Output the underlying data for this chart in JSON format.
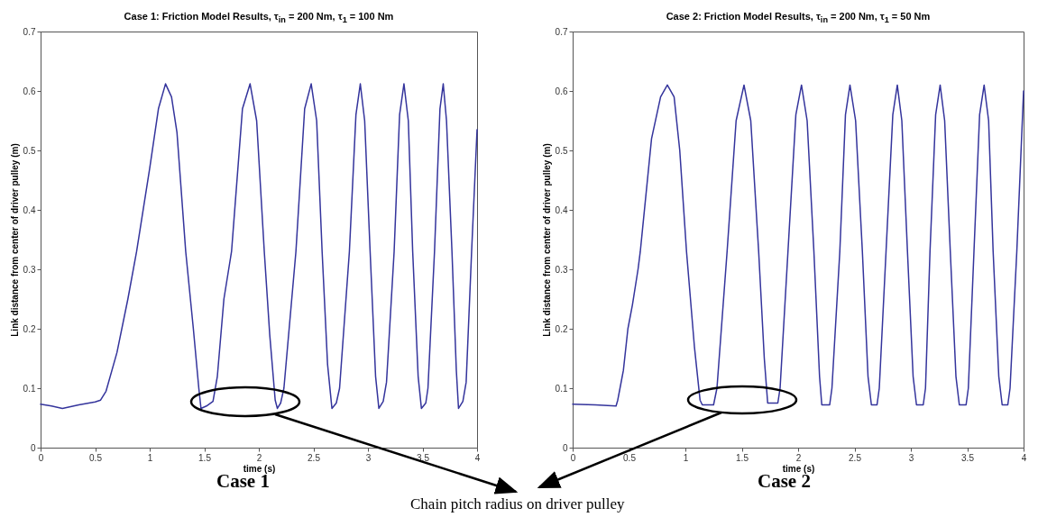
{
  "chart_data": [
    {
      "type": "line",
      "title": "Case 1: Friction Model Results, τ$_{in}$ = 200 Nm, τ$_{1}$ = 100 Nm",
      "xlabel": "time (s)",
      "ylabel": "Link distance from center of driver pulley (m)",
      "annotations": [
        "Case 1",
        "Chain pitch radius on driver pulley"
      ],
      "xlim": [
        0,
        4
      ],
      "ylim": [
        0,
        0.7
      ],
      "xticks": [
        0,
        0.5,
        1,
        1.5,
        2,
        2.5,
        3,
        3.5,
        4
      ],
      "yticks": [
        0,
        0.1,
        0.2,
        0.3,
        0.4,
        0.5,
        0.6,
        0.7
      ],
      "color": "#34349c",
      "x": [
        0,
        0.1,
        0.2,
        0.35,
        0.5,
        0.55,
        0.6,
        0.7,
        0.8,
        0.88,
        1.0,
        1.08,
        1.145,
        1.2,
        1.25,
        1.33,
        1.4,
        1.45,
        1.47,
        1.52,
        1.58,
        1.62,
        1.68,
        1.75,
        1.85,
        1.92,
        1.98,
        2.05,
        2.1,
        2.15,
        2.17,
        2.2,
        2.23,
        2.34,
        2.42,
        2.48,
        2.53,
        2.58,
        2.63,
        2.67,
        2.71,
        2.74,
        2.83,
        2.89,
        2.93,
        2.97,
        3.02,
        3.07,
        3.1,
        3.14,
        3.17,
        3.24,
        3.29,
        3.33,
        3.37,
        3.41,
        3.46,
        3.49,
        3.53,
        3.55,
        3.61,
        3.66,
        3.69,
        3.72,
        3.77,
        3.81,
        3.83,
        3.87,
        3.9,
        3.95,
        4.0
      ],
      "values": [
        0.073,
        0.07,
        0.066,
        0.072,
        0.077,
        0.08,
        0.095,
        0.16,
        0.25,
        0.33,
        0.47,
        0.57,
        0.612,
        0.59,
        0.53,
        0.33,
        0.2,
        0.1,
        0.066,
        0.07,
        0.078,
        0.12,
        0.25,
        0.33,
        0.57,
        0.612,
        0.55,
        0.33,
        0.19,
        0.08,
        0.066,
        0.075,
        0.1,
        0.33,
        0.57,
        0.612,
        0.55,
        0.33,
        0.14,
        0.066,
        0.075,
        0.1,
        0.33,
        0.56,
        0.612,
        0.55,
        0.33,
        0.12,
        0.066,
        0.078,
        0.11,
        0.33,
        0.56,
        0.612,
        0.55,
        0.33,
        0.12,
        0.066,
        0.075,
        0.1,
        0.33,
        0.57,
        0.612,
        0.55,
        0.33,
        0.13,
        0.066,
        0.078,
        0.11,
        0.33,
        0.535
      ]
    },
    {
      "type": "line",
      "title": "Case 2: Friction Model Results, τ$_{in}$ = 200 Nm, τ$_{1}$ = 50 Nm",
      "xlabel": "time (s)",
      "ylabel": "Link distance from center of driver pulley (m)",
      "annotations": [
        "Case 2"
      ],
      "xlim": [
        0,
        4
      ],
      "ylim": [
        0,
        0.7
      ],
      "xticks": [
        0,
        0.5,
        1,
        1.5,
        2,
        2.5,
        3,
        3.5,
        4
      ],
      "yticks": [
        0,
        0.1,
        0.2,
        0.3,
        0.4,
        0.5,
        0.6,
        0.7
      ],
      "color": "#34349c",
      "x": [
        0,
        0.2,
        0.385,
        0.4,
        0.42,
        0.45,
        0.49,
        0.53,
        0.58,
        0.6,
        0.7,
        0.78,
        0.84,
        0.9,
        0.95,
        1.01,
        1.08,
        1.13,
        1.15,
        1.25,
        1.28,
        1.37,
        1.45,
        1.52,
        1.58,
        1.65,
        1.7,
        1.73,
        1.82,
        1.84,
        1.91,
        1.98,
        2.03,
        2.08,
        2.14,
        2.19,
        2.21,
        2.28,
        2.3,
        2.37,
        2.42,
        2.46,
        2.51,
        2.57,
        2.62,
        2.65,
        2.7,
        2.72,
        2.78,
        2.84,
        2.88,
        2.92,
        2.97,
        3.02,
        3.05,
        3.11,
        3.13,
        3.17,
        3.22,
        3.26,
        3.3,
        3.35,
        3.4,
        3.43,
        3.49,
        3.51,
        3.56,
        3.61,
        3.65,
        3.69,
        3.73,
        3.78,
        3.81,
        3.86,
        3.88,
        3.94,
        4.0
      ],
      "values": [
        0.073,
        0.072,
        0.07,
        0.08,
        0.1,
        0.13,
        0.2,
        0.24,
        0.3,
        0.33,
        0.52,
        0.59,
        0.61,
        0.59,
        0.5,
        0.33,
        0.17,
        0.08,
        0.072,
        0.072,
        0.1,
        0.33,
        0.55,
        0.61,
        0.55,
        0.33,
        0.15,
        0.075,
        0.075,
        0.1,
        0.33,
        0.56,
        0.61,
        0.55,
        0.33,
        0.12,
        0.072,
        0.072,
        0.1,
        0.33,
        0.56,
        0.61,
        0.55,
        0.33,
        0.12,
        0.072,
        0.072,
        0.1,
        0.33,
        0.56,
        0.61,
        0.55,
        0.33,
        0.12,
        0.072,
        0.072,
        0.1,
        0.33,
        0.56,
        0.61,
        0.55,
        0.33,
        0.12,
        0.072,
        0.072,
        0.1,
        0.33,
        0.56,
        0.61,
        0.55,
        0.33,
        0.12,
        0.072,
        0.072,
        0.1,
        0.33,
        0.6
      ]
    }
  ]
}
